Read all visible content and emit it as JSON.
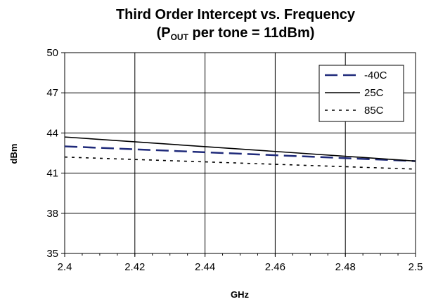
{
  "chart_data": {
    "type": "line",
    "title": "Third Order Intercept vs. Frequency",
    "subtitle": {
      "prefix": "(P",
      "subscript": "OUT",
      "suffix": " per tone = 11dBm)"
    },
    "xlabel": "GHz",
    "ylabel": "dBm",
    "xlim": [
      2.4,
      2.5
    ],
    "ylim": [
      35,
      50
    ],
    "x_ticks": [
      "2.4",
      "2.42",
      "2.44",
      "2.46",
      "2.48",
      "2.5"
    ],
    "y_ticks": [
      "35",
      "38",
      "41",
      "44",
      "47",
      "50"
    ],
    "grid": true,
    "legend_position": "top-right",
    "series": [
      {
        "name": "-40C",
        "style": "long-dash",
        "color": "#1f2a7a",
        "x": [
          2.4,
          2.5
        ],
        "y": [
          43.0,
          41.9
        ]
      },
      {
        "name": "25C",
        "style": "solid",
        "color": "#000000",
        "x": [
          2.4,
          2.5
        ],
        "y": [
          43.7,
          41.9
        ]
      },
      {
        "name": "85C",
        "style": "dotted",
        "color": "#000000",
        "x": [
          2.4,
          2.5
        ],
        "y": [
          42.2,
          41.3
        ]
      }
    ]
  }
}
